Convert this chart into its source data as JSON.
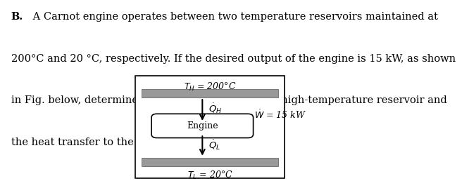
{
  "bold_prefix": "B.",
  "text_line1": " A Carnot engine operates between two temperature reservoirs maintained at",
  "text_line2": "200°C and 20 °C, respectively. If the desired output of the engine is 15 kW, as shown",
  "text_line3": "in Fig. below, determine the heat transfer from the high-temperature reservoir and",
  "text_line4": "the heat transfer to the low-temperature reservoir.",
  "TH_text": "$T_H$ = 200°C",
  "TL_text": "$T_L$ = 20°C",
  "QH_text": "$\\dot{Q}_H$",
  "QL_text": "$\\dot{Q}_L$",
  "W_text": "$\\dot{W}$ = 15 kW",
  "engine_text": "Engine",
  "reservoir_color": "#999999",
  "box_bg": "#ffffff",
  "box_edge": "#000000",
  "arrow_color": "#000000",
  "text_color": "#000000",
  "bg_color": "#ffffff",
  "font_size_body": 10.5,
  "font_size_diag": 9.0,
  "font_size_diag_label": 9.5
}
